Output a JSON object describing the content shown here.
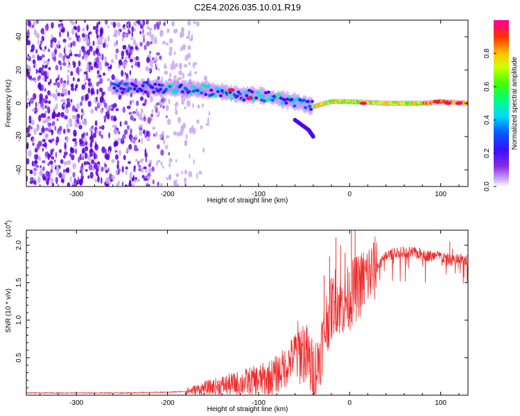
{
  "title": "C2E4.2026.035.10.01.R19",
  "chart_data": [
    {
      "type": "heatmap",
      "name": "spectrogram",
      "xlabel": "Height of straight line (km)",
      "ylabel": "Frequency (Hz)",
      "xlim": [
        -355,
        130
      ],
      "ylim": [
        -50,
        50
      ],
      "xticks": [
        -300,
        -200,
        -100,
        0,
        100
      ],
      "yticks": [
        -40,
        -20,
        0,
        20,
        40
      ],
      "colorbar": {
        "label": "Normalized spectral amplitude",
        "range": [
          0,
          1
        ],
        "ticks": [
          0.0,
          0.2,
          0.4,
          0.6,
          0.8
        ],
        "tick_labels": [
          "0.0",
          "0.2",
          "0.4",
          "0.6",
          "0.8"
        ]
      },
      "main_line_freq_hz": [
        {
          "x": -260,
          "y": 9
        },
        {
          "x": -240,
          "y": 10
        },
        {
          "x": -200,
          "y": 9
        },
        {
          "x": -160,
          "y": 8
        },
        {
          "x": -140,
          "y": 7
        },
        {
          "x": -120,
          "y": 5
        },
        {
          "x": -100,
          "y": 5
        },
        {
          "x": -80,
          "y": 3
        },
        {
          "x": -60,
          "y": 1
        },
        {
          "x": -40,
          "y": -2
        },
        {
          "x": -20,
          "y": 1
        },
        {
          "x": 0,
          "y": 1
        },
        {
          "x": 40,
          "y": 0
        },
        {
          "x": 80,
          "y": 0
        },
        {
          "x": 100,
          "y": 1
        },
        {
          "x": 130,
          "y": 0
        }
      ],
      "branch_freq_hz": [
        {
          "x": -60,
          "y": -10
        },
        {
          "x": -45,
          "y": -16
        },
        {
          "x": -40,
          "y": -20
        }
      ]
    },
    {
      "type": "line",
      "name": "snr",
      "xlabel": "Height of straight line (km)",
      "ylabel": "SNR (10 * v/v)",
      "scale_label": "(x10",
      "scale_exp": "4",
      "xlim": [
        -355,
        130
      ],
      "ylim": [
        0,
        2.2
      ],
      "xticks": [
        -300,
        -200,
        -100,
        0,
        100
      ],
      "yticks": [
        0.5,
        1.0,
        1.5,
        2.0
      ],
      "ytick_labels": [
        "0.5",
        "1.0",
        "1.5",
        "2.0"
      ],
      "color": "#ee2b2b",
      "series": [
        {
          "name": "SNR",
          "values": [
            [
              -355,
              0.03
            ],
            [
              -300,
              0.03
            ],
            [
              -250,
              0.03
            ],
            [
              -200,
              0.04
            ],
            [
              -180,
              0.05
            ],
            [
              -160,
              0.09
            ],
            [
              -140,
              0.13
            ],
            [
              -120,
              0.16
            ],
            [
              -100,
              0.2
            ],
            [
              -90,
              0.22
            ],
            [
              -80,
              0.28
            ],
            [
              -70,
              0.38
            ],
            [
              -60,
              0.55
            ],
            [
              -50,
              0.6
            ],
            [
              -45,
              0.45
            ],
            [
              -40,
              0.3
            ],
            [
              -35,
              0.4
            ],
            [
              -30,
              0.7
            ],
            [
              -25,
              1.0
            ],
            [
              -20,
              1.15
            ],
            [
              -15,
              1.3
            ],
            [
              -10,
              1.2
            ],
            [
              -5,
              1.25
            ],
            [
              0,
              1.3
            ],
            [
              5,
              1.4
            ],
            [
              10,
              1.45
            ],
            [
              20,
              1.6
            ],
            [
              30,
              1.7
            ],
            [
              40,
              1.85
            ],
            [
              50,
              1.9
            ],
            [
              60,
              1.9
            ],
            [
              70,
              1.9
            ],
            [
              80,
              1.88
            ],
            [
              90,
              1.85
            ],
            [
              100,
              1.85
            ],
            [
              110,
              1.8
            ],
            [
              120,
              1.82
            ],
            [
              130,
              1.8
            ]
          ]
        }
      ],
      "spikes": [
        [
          -28,
          1.6
        ],
        [
          -22,
          1.85
        ],
        [
          -15,
          2.1
        ],
        [
          -10,
          2.0
        ],
        [
          -5,
          1.9
        ],
        [
          2,
          2.2
        ],
        [
          6,
          2.2
        ],
        [
          12,
          1.8
        ],
        [
          30,
          1.75
        ],
        [
          70,
          1.9
        ],
        [
          110,
          2.05
        ],
        [
          113,
          1.95
        ]
      ]
    }
  ]
}
